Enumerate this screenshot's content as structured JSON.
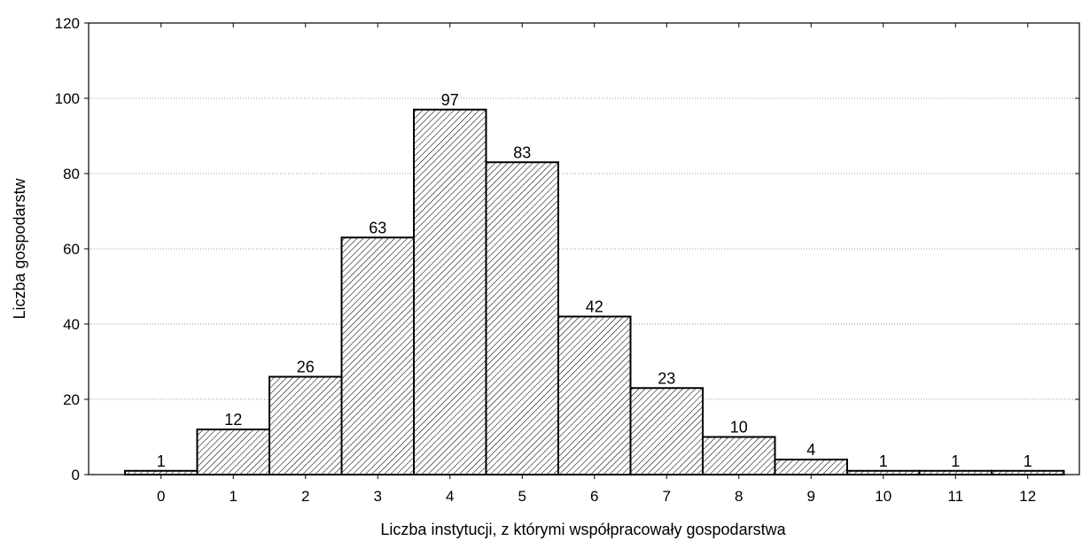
{
  "chart_data": {
    "type": "bar",
    "categories": [
      "0",
      "1",
      "2",
      "3",
      "4",
      "5",
      "6",
      "7",
      "8",
      "9",
      "10",
      "11",
      "12"
    ],
    "values": [
      1,
      12,
      26,
      63,
      97,
      83,
      42,
      23,
      10,
      4,
      1,
      1,
      1
    ],
    "xlabel": "Liczba instytucji, z którymi współpracowały gospodarstwa",
    "ylabel": "Liczba gospodarstw",
    "ylim": [
      0,
      120
    ],
    "yticks": [
      0,
      20,
      40,
      60,
      80,
      100,
      120
    ],
    "grid": true,
    "bar_fill": "diagonal-hatch",
    "data_labels": true
  }
}
